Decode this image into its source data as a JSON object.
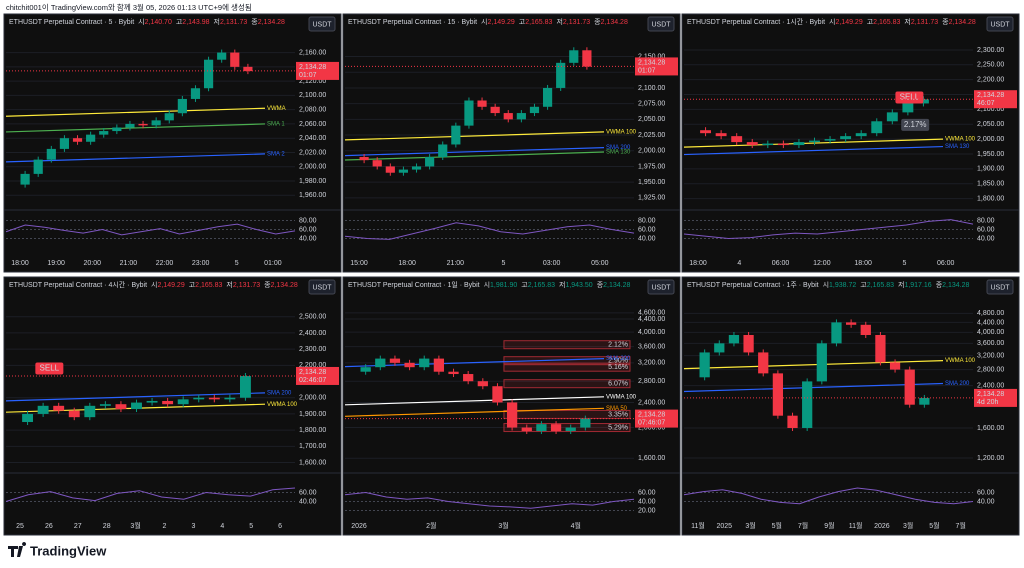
{
  "header": "chitchit001이 TradingView.com와 함께 3월 05, 2026 01:13 UTC+9에 생성됨",
  "footer": "TradingView",
  "panels": [
    {
      "title": "ETHUSDT Perpetual Contract · 5 · Bybit",
      "ohlc": [
        {
          "label": "시",
          "value": "2,140.70"
        },
        {
          "label": "고",
          "value": "2,143.98"
        },
        {
          "label": "저",
          "value": "2,131.73"
        },
        {
          "label": "종",
          "value": "2,134.28"
        }
      ],
      "ohlc_color": "#f23645",
      "currency": "USDT",
      "log_scale": false,
      "ylim": [
        1945,
        2172
      ],
      "price_ticks": [
        {
          "value": 2160,
          "label": "2,160.00"
        },
        {
          "value": 2140,
          "label": "2,140.00"
        },
        {
          "value": 2120,
          "label": "2,120.00"
        },
        {
          "value": 2100,
          "label": "2,100.00"
        },
        {
          "value": 2080,
          "label": "2,080.00"
        },
        {
          "value": 2060,
          "label": "2,060.00"
        },
        {
          "value": 2040,
          "label": "2,040.00"
        },
        {
          "value": 2020,
          "label": "2,020.00"
        },
        {
          "value": 2000,
          "label": "2,000.00"
        },
        {
          "value": 1980,
          "label": "1,980.00"
        },
        {
          "value": 1960,
          "label": "1,960.00"
        }
      ],
      "price_tag": {
        "value": 2134.28,
        "label": "2,134.28",
        "timer": "01:07"
      },
      "time_labels": [
        "18:00",
        "19:00",
        "20:00",
        "21:00",
        "22:00",
        "23:00",
        "5",
        "01:00"
      ],
      "close": [
        1975,
        1990,
        2010,
        2025,
        2040,
        2035,
        2045,
        2050,
        2055,
        2060,
        2058,
        2065,
        2075,
        2095,
        2110,
        2150,
        2160,
        2140,
        2134
      ],
      "indicators": [
        {
          "label": "VWMA",
          "value": 2082,
          "color": "#ffeb3b"
        },
        {
          "label": "SMA 1",
          "value": 2060,
          "color": "#4caf50"
        },
        {
          "label": "SMA 2",
          "value": 2018,
          "color": "#2962ff"
        }
      ],
      "rsi_ticks": [
        {
          "value": 80,
          "label": "80.00"
        },
        {
          "value": 60,
          "label": "60.00"
        },
        {
          "value": 40,
          "label": "40.00"
        }
      ],
      "rsi": [
        55,
        70,
        65,
        58,
        52,
        60,
        48,
        55,
        62,
        50,
        58,
        66,
        72,
        60,
        50,
        57
      ],
      "markers": []
    },
    {
      "title": "ETHUSDT Perpetual Contract · 15 · Bybit",
      "ohlc": [
        {
          "label": "시",
          "value": "2,149.29"
        },
        {
          "label": "고",
          "value": "2,165.83"
        },
        {
          "label": "저",
          "value": "2,131.73"
        },
        {
          "label": "종",
          "value": "2,134.28"
        }
      ],
      "ohlc_color": "#f23645",
      "currency": "USDT",
      "log_scale": false,
      "ylim": [
        1912,
        2170
      ],
      "price_ticks": [
        {
          "value": 2150,
          "label": "2,150.00"
        },
        {
          "value": 2125,
          "label": "2,125.00"
        },
        {
          "value": 2100,
          "label": "2,100.00"
        },
        {
          "value": 2075,
          "label": "2,075.00"
        },
        {
          "value": 2050,
          "label": "2,050.00"
        },
        {
          "value": 2025,
          "label": "2,025.00"
        },
        {
          "value": 2000,
          "label": "2,000.00"
        },
        {
          "value": 1975,
          "label": "1,975.00"
        },
        {
          "value": 1950,
          "label": "1,950.00"
        },
        {
          "value": 1925,
          "label": "1,925.00"
        }
      ],
      "price_tag": {
        "value": 2134.28,
        "label": "2,134.28",
        "timer": "01:07"
      },
      "time_labels": [
        "15:00",
        "18:00",
        "21:00",
        "5",
        "03:00",
        "05:00"
      ],
      "close": [
        1990,
        1985,
        1975,
        1965,
        1970,
        1975,
        1990,
        2010,
        2040,
        2080,
        2070,
        2060,
        2050,
        2060,
        2070,
        2100,
        2140,
        2160,
        2134
      ],
      "indicators": [
        {
          "label": "VWMA 100",
          "value": 2030,
          "color": "#ffeb3b"
        },
        {
          "label": "SMA 200",
          "value": 2005,
          "color": "#2962ff"
        },
        {
          "label": "SMA 130",
          "value": 1998,
          "color": "#4caf50"
        }
      ],
      "rsi_ticks": [
        {
          "value": 80,
          "label": "80.00"
        },
        {
          "value": 60,
          "label": "60.00"
        },
        {
          "value": 40,
          "label": "40.00"
        }
      ],
      "rsi": [
        45,
        40,
        38,
        50,
        62,
        75,
        68,
        55,
        50,
        58,
        66,
        70,
        60,
        52
      ],
      "markers": []
    },
    {
      "title": "ETHUSDT Perpetual Contract · 1시간 · Bybit",
      "ohlc": [
        {
          "label": "시",
          "value": "2,149.29"
        },
        {
          "label": "고",
          "value": "2,165.83"
        },
        {
          "label": "저",
          "value": "2,131.73"
        },
        {
          "label": "종",
          "value": "2,134.28"
        }
      ],
      "ohlc_color": "#f23645",
      "currency": "USDT",
      "log_scale": false,
      "ylim": [
        1775,
        2320
      ],
      "price_ticks": [
        {
          "value": 2300,
          "label": "2,300.00"
        },
        {
          "value": 2250,
          "label": "2,250.00"
        },
        {
          "value": 2200,
          "label": "2,200.00"
        },
        {
          "value": 2150,
          "label": "2,150.00"
        },
        {
          "value": 2100,
          "label": "2,100.00"
        },
        {
          "value": 2050,
          "label": "2,050.00"
        },
        {
          "value": 2000,
          "label": "2,000.00"
        },
        {
          "value": 1950,
          "label": "1,950.00"
        },
        {
          "value": 1900,
          "label": "1,900.00"
        },
        {
          "value": 1850,
          "label": "1,850.00"
        },
        {
          "value": 1800,
          "label": "1,800.00"
        }
      ],
      "price_tag": {
        "value": 2134.28,
        "label": "2,134.28",
        "timer": "46:07"
      },
      "time_labels": [
        "18:00",
        "4",
        "06:00",
        "12:00",
        "18:00",
        "5",
        "06:00"
      ],
      "close": [
        2030,
        2020,
        2010,
        1990,
        1980,
        1985,
        1980,
        1990,
        1995,
        2000,
        2010,
        2020,
        2060,
        2090,
        2120,
        2134
      ],
      "indicators": [
        {
          "label": "VWMA 100",
          "value": 2000,
          "color": "#ffeb3b"
        },
        {
          "label": "SMA 130",
          "value": 1975,
          "color": "#2962ff"
        }
      ],
      "rsi_ticks": [
        {
          "value": 80,
          "label": "80.00"
        },
        {
          "value": 60,
          "label": "60.00"
        },
        {
          "value": 40,
          "label": "40.00"
        }
      ],
      "rsi": [
        50,
        45,
        40,
        42,
        48,
        52,
        50,
        55,
        60,
        65,
        70,
        78,
        82,
        72
      ],
      "markers": [
        {
          "label": "SELL",
          "value": 2140,
          "pos": 0.78
        },
        {
          "label": "2.17%",
          "value": 2048,
          "pos": 0.8
        }
      ]
    },
    {
      "title": "ETHUSDT Perpetual Contract · 4시간 · Bybit",
      "ohlc": [
        {
          "label": "시",
          "value": "2,149.29"
        },
        {
          "label": "고",
          "value": "2,165.83"
        },
        {
          "label": "저",
          "value": "2,131.73"
        },
        {
          "label": "종",
          "value": "2,134.28"
        }
      ],
      "ohlc_color": "#f23645",
      "currency": "USDT",
      "log_scale": false,
      "ylim": [
        1560,
        2560
      ],
      "price_ticks": [
        {
          "value": 2500,
          "label": "2,500.00"
        },
        {
          "value": 2400,
          "label": "2,400.00"
        },
        {
          "value": 2300,
          "label": "2,300.00"
        },
        {
          "value": 2200,
          "label": "2,200.00"
        },
        {
          "value": 2000,
          "label": "2,000.00"
        },
        {
          "value": 1900,
          "label": "1,900.00"
        },
        {
          "value": 1800,
          "label": "1,800.00"
        },
        {
          "value": 1700,
          "label": "1,700.00"
        },
        {
          "value": 1600,
          "label": "1,600.00"
        }
      ],
      "price_tag": {
        "value": 2134.28,
        "label": "2,134.28",
        "timer": "02:46:07"
      },
      "time_labels": [
        "25",
        "26",
        "27",
        "28",
        "3월",
        "2",
        "3",
        "4",
        "5",
        "6"
      ],
      "close": [
        1850,
        1900,
        1950,
        1920,
        1880,
        1950,
        1960,
        1930,
        1970,
        1980,
        1960,
        1990,
        2000,
        1990,
        2000,
        2134
      ],
      "indicators": [
        {
          "label": "SMA 200",
          "value": 2030,
          "color": "#2962ff"
        },
        {
          "label": "VWMA 100",
          "value": 1960,
          "color": "#ffeb3b"
        }
      ],
      "rsi_ticks": [
        {
          "value": 60,
          "label": "60.00"
        },
        {
          "value": 40,
          "label": "40.00"
        }
      ],
      "rsi": [
        40,
        55,
        62,
        48,
        42,
        58,
        64,
        50,
        45,
        60,
        55,
        52,
        66,
        70
      ],
      "markers": [
        {
          "label": "SELL",
          "value": 2180,
          "pos": 0.15
        }
      ]
    },
    {
      "title": "ETHUSDT Perpetual Contract · 1일 · Bybit",
      "ohlc": [
        {
          "label": "시",
          "value": "1,981.90"
        },
        {
          "label": "고",
          "value": "2,165.83"
        },
        {
          "label": "저",
          "value": "1,943.50"
        },
        {
          "label": "종",
          "value": "2,134.28"
        }
      ],
      "ohlc_color": "#089981",
      "currency": "USDT",
      "log_scale": true,
      "ylim": [
        1480,
        4800
      ],
      "price_ticks": [
        {
          "value": 4600,
          "label": "4,600.00"
        },
        {
          "value": 4400,
          "label": "4,400.00"
        },
        {
          "value": 4000,
          "label": "4,000.00"
        },
        {
          "value": 3600,
          "label": "3,600.00"
        },
        {
          "value": 3200,
          "label": "3,200.00"
        },
        {
          "value": 2800,
          "label": "2,800.00"
        },
        {
          "value": 2400,
          "label": "2,400.00"
        },
        {
          "value": 2000,
          "label": "2,000.00"
        },
        {
          "value": 1600,
          "label": "1,600.00"
        }
      ],
      "price_tag": {
        "value": 2134.28,
        "label": "2,134.28",
        "timer": "07:46:07"
      },
      "time_labels": [
        "2026",
        "2월",
        "3월",
        "4월"
      ],
      "close": [
        3000,
        3100,
        3300,
        3200,
        3100,
        3300,
        3000,
        2950,
        2800,
        2700,
        2400,
        2000,
        1950,
        2050,
        1950,
        2000,
        2134
      ],
      "indicators": [
        {
          "label": "SMA 200",
          "value": 3300,
          "color": "#2962ff"
        },
        {
          "label": "VWMA 100",
          "value": 2500,
          "color": "#ffffff"
        },
        {
          "label": "SMA 50",
          "value": 2300,
          "color": "#ff9800"
        }
      ],
      "levels": [
        {
          "label": "2.12%",
          "value": 3650
        },
        {
          "label": "2.90%",
          "value": 3250
        },
        {
          "label": "5.16%",
          "value": 3100
        },
        {
          "label": "6.07%",
          "value": 2750
        },
        {
          "label": "3.35%",
          "value": 2200
        },
        {
          "label": "5.29%",
          "value": 2000
        }
      ],
      "rsi_ticks": [
        {
          "value": 60,
          "label": "60.00"
        },
        {
          "value": 40,
          "label": "40.00"
        },
        {
          "value": 20,
          "label": "20.00"
        }
      ],
      "rsi": [
        55,
        60,
        50,
        45,
        48,
        40,
        35,
        30,
        28,
        25,
        30,
        35,
        32,
        40,
        45
      ],
      "markers": []
    },
    {
      "title": "ETHUSDT Perpetual Contract · 1주 · Bybit",
      "ohlc": [
        {
          "label": "시",
          "value": "1,938.72"
        },
        {
          "label": "고",
          "value": "2,165.83"
        },
        {
          "label": "저",
          "value": "1,917.16"
        },
        {
          "label": "종",
          "value": "2,134.28"
        }
      ],
      "ohlc_color": "#089981",
      "currency": "USDT",
      "log_scale": true,
      "ylim": [
        1080,
        5100
      ],
      "price_ticks": [
        {
          "value": 4800,
          "label": "4,800.00"
        },
        {
          "value": 4400,
          "label": "4,400.00"
        },
        {
          "value": 4000,
          "label": "4,000.00"
        },
        {
          "value": 3600,
          "label": "3,600.00"
        },
        {
          "value": 3200,
          "label": "3,200.00"
        },
        {
          "value": 2800,
          "label": "2,800.00"
        },
        {
          "value": 2400,
          "label": "2,400.00"
        },
        {
          "value": 1600,
          "label": "1,600.00"
        },
        {
          "value": 1200,
          "label": "1,200.00"
        }
      ],
      "price_tag": {
        "value": 2134.28,
        "label": "2,134.28",
        "timer": "4d 20h"
      },
      "time_labels": [
        "11월",
        "2025",
        "3월",
        "5월",
        "7월",
        "9월",
        "11월",
        "2026",
        "3월",
        "5월",
        "7월"
      ],
      "close": [
        2600,
        3300,
        3600,
        3900,
        3300,
        2700,
        1800,
        1600,
        2500,
        3600,
        4400,
        4300,
        3900,
        3000,
        2800,
        2000,
        2134
      ],
      "indicators": [
        {
          "label": "VWMA 100",
          "value": 3050,
          "color": "#ffeb3b"
        },
        {
          "label": "SMA 200",
          "value": 2450,
          "color": "#2962ff"
        }
      ],
      "rsi_ticks": [
        {
          "value": 60,
          "label": "60.00"
        },
        {
          "value": 40,
          "label": "40.00"
        }
      ],
      "rsi": [
        55,
        62,
        66,
        58,
        45,
        38,
        35,
        50,
        62,
        70,
        65,
        55,
        45,
        38,
        35,
        40
      ],
      "markers": []
    }
  ]
}
